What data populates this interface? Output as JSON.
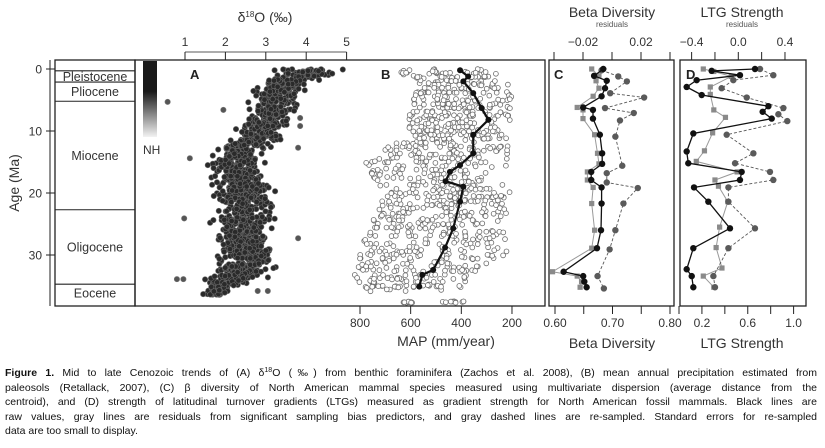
{
  "chart_data": [
    {
      "panel": "A",
      "type": "scatter",
      "label": "A",
      "x_axis": {
        "title_prefix": "δ",
        "title_sup": "18",
        "title_suffix": "O (‰)",
        "ticks": [
          1,
          2,
          3,
          4,
          5
        ],
        "position": "top"
      },
      "y_axis": {
        "title": "Age (Ma)",
        "ticks": [
          0,
          10,
          20,
          30
        ],
        "range": [
          0,
          37.5
        ],
        "inverted": true
      },
      "color_legend_label": "NH",
      "point_envelope_age_low_high": [
        [
          0,
          3.0,
          5.2
        ],
        [
          1,
          3.0,
          5.0
        ],
        [
          2,
          2.7,
          4.3
        ],
        [
          4,
          2.5,
          4.0
        ],
        [
          6,
          2.4,
          3.9
        ],
        [
          9,
          2.2,
          3.7
        ],
        [
          11,
          2.0,
          3.6
        ],
        [
          13,
          1.5,
          3.1
        ],
        [
          15,
          1.3,
          3.0
        ],
        [
          17,
          1.5,
          3.2
        ],
        [
          20,
          1.5,
          3.4
        ],
        [
          23,
          1.5,
          3.4
        ],
        [
          26,
          1.6,
          3.3
        ],
        [
          29,
          1.6,
          3.4
        ],
        [
          32,
          1.5,
          3.5
        ],
        [
          33.5,
          1.2,
          3.3
        ],
        [
          35,
          1.3,
          2.4
        ],
        [
          36.5,
          1.4,
          2.0
        ]
      ],
      "outliers_age_value": [
        [
          5.3,
          0.57
        ],
        [
          6.6,
          1.95
        ],
        [
          7.9,
          3.85
        ],
        [
          9.2,
          3.85
        ],
        [
          12.7,
          3.8
        ],
        [
          14.4,
          1.12
        ],
        [
          24.1,
          0.98
        ],
        [
          27.3,
          3.8
        ],
        [
          33.9,
          0.8
        ],
        [
          33.9,
          0.96
        ],
        [
          35.8,
          2.8
        ],
        [
          35.8,
          3.05
        ]
      ]
    },
    {
      "panel": "B",
      "type": "scatter",
      "label": "B",
      "x_axis": {
        "title": "MAP (mm/year)",
        "ticks": [
          800,
          600,
          400,
          200
        ],
        "position": "bottom",
        "inverted": true
      },
      "point_envelope_age_low_high": [
        [
          0,
          270,
          660
        ],
        [
          3,
          190,
          570
        ],
        [
          6,
          200,
          600
        ],
        [
          10,
          200,
          620
        ],
        [
          13,
          210,
          700
        ],
        [
          15,
          215,
          790
        ],
        [
          20,
          200,
          700
        ],
        [
          25,
          225,
          770
        ],
        [
          30,
          215,
          800
        ],
        [
          33.5,
          360,
          830
        ],
        [
          35,
          380,
          800
        ]
      ],
      "extra_clusters_age_low_high": [
        [
          37.6,
          590,
          630
        ],
        [
          37.6,
          385,
          490
        ]
      ],
      "mean_series": {
        "name": "Mean MAP",
        "points_age_value": [
          [
            0.2,
            405
          ],
          [
            1.2,
            373
          ],
          [
            2.0,
            392
          ],
          [
            3.9,
            353
          ],
          [
            6.3,
            320
          ],
          [
            8.2,
            293
          ],
          [
            10.6,
            353
          ],
          [
            13.6,
            353
          ],
          [
            15.5,
            405
          ],
          [
            16.6,
            445
          ],
          [
            18.1,
            462
          ],
          [
            19.0,
            392
          ],
          [
            21.4,
            405
          ],
          [
            25.7,
            432
          ],
          [
            28.8,
            464
          ],
          [
            32.4,
            511
          ],
          [
            33.2,
            554
          ],
          [
            35.1,
            566
          ]
        ]
      }
    },
    {
      "panel": "C",
      "type": "line",
      "label": "C",
      "title": "Beta Diversity",
      "top_subtitle": "residuals",
      "xlabel": "Beta Diversity",
      "x_ticks_bottom": [
        0.6,
        0.65,
        0.7,
        0.75,
        0.8
      ],
      "x_tick_labels_bottom": [
        "0.60",
        "0.70",
        "0.80"
      ],
      "x_ticks_top": [
        -0.04,
        -0.02,
        0,
        0.02,
        0.04
      ],
      "x_tick_labels_top": [
        "−0.02",
        "0.02"
      ],
      "series": [
        {
          "name": "raw",
          "style": "black solid",
          "axis": "bottom",
          "points_age_value": [
            [
              0.0,
              0.684
            ],
            [
              1.1,
              0.668
            ],
            [
              1.9,
              0.69
            ],
            [
              3.1,
              0.687
            ],
            [
              4.4,
              0.681
            ],
            [
              6.2,
              0.649
            ],
            [
              6.6,
              0.666
            ],
            [
              8.0,
              0.666
            ],
            [
              10.6,
              0.678
            ],
            [
              13.6,
              0.682
            ],
            [
              15.3,
              0.682
            ],
            [
              16.6,
              0.663
            ],
            [
              17.9,
              0.663
            ],
            [
              19.1,
              0.681
            ],
            [
              21.7,
              0.681
            ],
            [
              26.0,
              0.68
            ],
            [
              28.9,
              0.673
            ],
            [
              32.7,
              0.615
            ],
            [
              33.4,
              0.649
            ],
            [
              34.3,
              0.651
            ],
            [
              35.2,
              0.655
            ]
          ]
        },
        {
          "name": "residuals",
          "style": "gray solid",
          "axis": "top",
          "points_age_value": [
            [
              0.0,
              -0.014
            ],
            [
              1.1,
              -0.009
            ],
            [
              1.9,
              -0.011
            ],
            [
              3.1,
              -0.009
            ],
            [
              4.4,
              -0.013
            ],
            [
              6.2,
              -0.024
            ],
            [
              6.6,
              -0.02
            ],
            [
              8.0,
              -0.02
            ],
            [
              10.6,
              -0.012
            ],
            [
              13.6,
              -0.01
            ],
            [
              15.3,
              -0.009
            ],
            [
              16.6,
              -0.017
            ],
            [
              17.9,
              -0.017
            ],
            [
              19.1,
              -0.013
            ],
            [
              21.7,
              -0.014
            ],
            [
              26.0,
              -0.012
            ],
            [
              28.9,
              -0.014
            ],
            [
              32.7,
              -0.041
            ],
            [
              33.4,
              -0.024
            ],
            [
              34.3,
              -0.021
            ],
            [
              35.2,
              -0.022
            ]
          ]
        },
        {
          "name": "re-sampled",
          "style": "gray dashed",
          "axis": "bottom",
          "points_age_value": [
            [
              0.2,
              0.681
            ],
            [
              1.2,
              0.71
            ],
            [
              2.0,
              0.725
            ],
            [
              3.9,
              0.696
            ],
            [
              4.6,
              0.755
            ],
            [
              6.3,
              0.687
            ],
            [
              7.1,
              0.737
            ],
            [
              8.3,
              0.713
            ],
            [
              10.9,
              0.705
            ],
            [
              15.6,
              0.717
            ],
            [
              16.8,
              0.69
            ],
            [
              18.3,
              0.69
            ],
            [
              19.2,
              0.744
            ],
            [
              21.7,
              0.719
            ],
            [
              26.0,
              0.705
            ],
            [
              29.1,
              0.695
            ],
            [
              33.4,
              0.674
            ],
            [
              35.4,
              0.685
            ]
          ]
        }
      ]
    },
    {
      "panel": "D",
      "type": "line",
      "label": "D",
      "title": "LTG Strength",
      "top_subtitle": "residuals",
      "xlabel": "LTG Strength",
      "x_ticks_bottom": [
        0.0,
        0.2,
        0.4,
        0.6,
        0.8,
        1.0
      ],
      "x_tick_labels_bottom": [
        "0.2",
        "0.6",
        "1.0"
      ],
      "x_ticks_top": [
        -0.4,
        -0.2,
        0.0,
        0.2,
        0.4
      ],
      "x_tick_labels_top": [
        "−0.4",
        "0.0",
        "0.4"
      ],
      "series": [
        {
          "name": "raw",
          "style": "black solid",
          "axis": "bottom",
          "points_age_value": [
            [
              0.0,
              0.663
            ],
            [
              0.3,
              0.285
            ],
            [
              1.0,
              0.532
            ],
            [
              1.8,
              0.154
            ],
            [
              2.9,
              0.067
            ],
            [
              4.2,
              0.198
            ],
            [
              6.0,
              0.78
            ],
            [
              6.9,
              0.73
            ],
            [
              8.0,
              0.809
            ],
            [
              10.4,
              0.125
            ],
            [
              13.3,
              0.067
            ],
            [
              15.2,
              0.081
            ],
            [
              16.6,
              0.547
            ],
            [
              17.9,
              0.532
            ],
            [
              19.1,
              0.131
            ],
            [
              21.4,
              0.256
            ],
            [
              25.7,
              0.445
            ],
            [
              28.9,
              0.125
            ],
            [
              32.3,
              0.067
            ],
            [
              33.4,
              0.111
            ],
            [
              35.2,
              0.125
            ]
          ]
        },
        {
          "name": "residuals",
          "style": "gray solid",
          "axis": "top",
          "points_age_value": [
            [
              0.0,
              -0.3
            ],
            [
              0.4,
              -0.21
            ],
            [
              1.2,
              -0.06
            ],
            [
              2.9,
              -0.24
            ],
            [
              4.1,
              -0.24
            ],
            [
              6.6,
              -0.21
            ],
            [
              7.8,
              -0.11
            ],
            [
              10.3,
              -0.22
            ],
            [
              13.2,
              -0.29
            ],
            [
              14.9,
              -0.36
            ],
            [
              16.6,
              -0.01
            ],
            [
              17.9,
              -0.2
            ],
            [
              18.9,
              -0.17
            ],
            [
              21.4,
              -0.09
            ],
            [
              25.5,
              -0.16
            ],
            [
              28.8,
              -0.19
            ],
            [
              32.1,
              -0.14
            ],
            [
              33.4,
              -0.3
            ],
            [
              35.2,
              -0.21
            ]
          ]
        },
        {
          "name": "re-sampled",
          "style": "gray dashed",
          "axis": "bottom",
          "points_age_value": [
            [
              0.0,
              0.707
            ],
            [
              1.0,
              0.823
            ],
            [
              1.8,
              0.474
            ],
            [
              3.1,
              0.372
            ],
            [
              4.6,
              0.591
            ],
            [
              6.3,
              0.911
            ],
            [
              7.3,
              0.867
            ],
            [
              8.4,
              0.945
            ],
            [
              10.6,
              0.416
            ],
            [
              13.6,
              0.649
            ],
            [
              15.2,
              0.489
            ],
            [
              16.6,
              0.794
            ],
            [
              17.9,
              0.823
            ],
            [
              19.1,
              0.431
            ],
            [
              21.4,
              0.431
            ],
            [
              25.7,
              0.663
            ],
            [
              28.9,
              0.431
            ],
            [
              33.4,
              0.3
            ],
            [
              35.2,
              0.314
            ]
          ]
        }
      ]
    }
  ],
  "epochs": [
    {
      "name": "Pleistocene",
      "start_age": 0.3,
      "end_age": 2.1
    },
    {
      "name": "Pliocene",
      "start_age": 2.1,
      "end_age": 5.2
    },
    {
      "name": "Miocene",
      "start_age": 5.2,
      "end_age": 22.7
    },
    {
      "name": "Oligocene",
      "start_age": 22.7,
      "end_age": 34.7
    },
    {
      "name": "Eocene",
      "start_age": 34.7,
      "end_age": 37.5
    }
  ],
  "caption": {
    "label": "Figure 1.",
    "line1_a": " Mid to late Cenozoic trends of (A) δ",
    "line1_sup": "18",
    "line1_b": "O (‰) from benthic foraminifera (Zachos et al. 2008), (B) mean annual precipitation estimated from",
    "line2": "paleosols (Retallack, 2007), (C) β diversity of North American mammal species measured using multivariate dispersion (average distance from the",
    "line3": "centroid), and (D) strength of latitudinal turnover gradients (LTGs) measured as gradient strength for North American fossil mammals. Black lines are",
    "line4": "raw values, gray lines are residuals from significant sampling bias predictors, and gray dashed lines are re-sampled. Standard errors for re-sampled",
    "line5": "data are too small to display."
  }
}
